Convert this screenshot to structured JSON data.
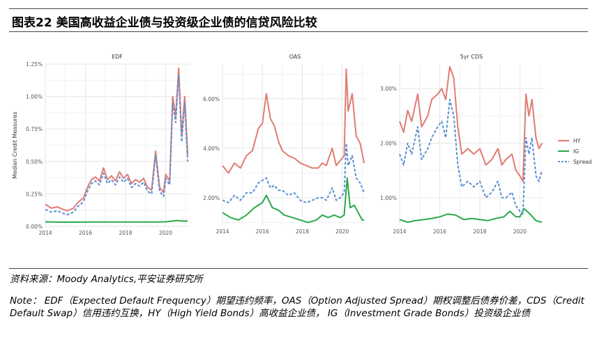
{
  "header": {
    "title": "图表22    美国高收益企业债与投资级企业债的信贷风险比较"
  },
  "footer": {
    "source": "资料来源：Moody Analytics,平安证券研究所",
    "note": "Note： EDF（Expected Default Frequency）期望违约频率，OAS（Option Adjusted Spread）期权调整后债券价差，CDS（Credit Default Swap）信用违约互换，HY（High Yield Bonds）高收益企业债， IG（Investment Grade Bonds）投资级企业债"
  },
  "colors": {
    "HY": "#e07b72",
    "IG": "#2aa84a",
    "Spread": "#5a8fd4"
  },
  "chart_data": [
    {
      "type": "line",
      "title": "EDF",
      "ylabel": "Median Credit Measures",
      "xlim": [
        2014,
        2021.2
      ],
      "ylim": [
        0,
        1.25
      ],
      "yticks": [
        0,
        0.25,
        0.5,
        0.75,
        1.0,
        1.25
      ],
      "ytick_labels": [
        "0.00%",
        "0.25%",
        "0.50%",
        "0.75%",
        "1.00%",
        "1.25%"
      ],
      "xticks": [
        2014,
        2016,
        2018,
        2020
      ],
      "grid": true,
      "series": [
        {
          "name": "HY",
          "style": "solid",
          "x": [
            2014.0,
            2014.3,
            2014.6,
            2014.9,
            2015.1,
            2015.4,
            2015.6,
            2015.9,
            2016.1,
            2016.3,
            2016.5,
            2016.7,
            2016.9,
            2017.1,
            2017.3,
            2017.5,
            2017.7,
            2017.9,
            2018.1,
            2018.3,
            2018.5,
            2018.7,
            2018.9,
            2019.1,
            2019.3,
            2019.5,
            2019.7,
            2019.9,
            2020.0,
            2020.2,
            2020.35,
            2020.5,
            2020.65,
            2020.8,
            2020.95,
            2021.1
          ],
          "y": [
            0.17,
            0.14,
            0.15,
            0.13,
            0.12,
            0.14,
            0.18,
            0.22,
            0.3,
            0.36,
            0.38,
            0.35,
            0.45,
            0.36,
            0.39,
            0.35,
            0.42,
            0.37,
            0.4,
            0.33,
            0.36,
            0.34,
            0.37,
            0.3,
            0.28,
            0.58,
            0.3,
            0.26,
            0.4,
            0.35,
            1.0,
            0.85,
            1.22,
            0.7,
            1.0,
            0.55
          ]
        },
        {
          "name": "IG",
          "style": "solid",
          "x": [
            2014.0,
            2014.5,
            2015.0,
            2015.5,
            2016.0,
            2016.5,
            2017.0,
            2017.5,
            2018.0,
            2018.5,
            2019.0,
            2019.5,
            2020.0,
            2020.3,
            2020.6,
            2020.9,
            2021.1
          ],
          "y": [
            0.035,
            0.033,
            0.032,
            0.032,
            0.033,
            0.034,
            0.034,
            0.034,
            0.034,
            0.033,
            0.034,
            0.033,
            0.035,
            0.04,
            0.045,
            0.04,
            0.042
          ]
        },
        {
          "name": "Spread",
          "style": "dashed",
          "x": [
            2014.0,
            2014.3,
            2014.6,
            2014.9,
            2015.1,
            2015.4,
            2015.6,
            2015.9,
            2016.1,
            2016.3,
            2016.5,
            2016.7,
            2016.9,
            2017.1,
            2017.3,
            2017.5,
            2017.7,
            2017.9,
            2018.1,
            2018.3,
            2018.5,
            2018.7,
            2018.9,
            2019.1,
            2019.3,
            2019.5,
            2019.7,
            2019.9,
            2020.0,
            2020.2,
            2020.35,
            2020.5,
            2020.65,
            2020.8,
            2020.95,
            2021.1
          ],
          "y": [
            0.13,
            0.11,
            0.12,
            0.1,
            0.09,
            0.11,
            0.15,
            0.19,
            0.27,
            0.33,
            0.35,
            0.32,
            0.41,
            0.33,
            0.36,
            0.32,
            0.38,
            0.34,
            0.37,
            0.3,
            0.33,
            0.31,
            0.34,
            0.27,
            0.25,
            0.55,
            0.27,
            0.23,
            0.37,
            0.32,
            0.95,
            0.8,
            1.17,
            0.65,
            0.95,
            0.5
          ]
        }
      ]
    },
    {
      "type": "line",
      "title": "OAS",
      "xlim": [
        2014,
        2021.2
      ],
      "ylim": [
        0.9,
        7.4
      ],
      "yticks": [
        2,
        4,
        6
      ],
      "ytick_labels": [
        "2.00%",
        "4.00%",
        "6.00%"
      ],
      "xticks": [
        2014,
        2016,
        2018,
        2020
      ],
      "grid": true,
      "series": [
        {
          "name": "HY",
          "style": "solid",
          "x": [
            2014.0,
            2014.3,
            2014.6,
            2014.9,
            2015.2,
            2015.5,
            2015.8,
            2016.0,
            2016.2,
            2016.4,
            2016.6,
            2016.8,
            2017.0,
            2017.3,
            2017.6,
            2017.9,
            2018.2,
            2018.5,
            2018.8,
            2019.0,
            2019.2,
            2019.5,
            2019.7,
            2019.9,
            2020.1,
            2020.2,
            2020.3,
            2020.5,
            2020.7,
            2020.9,
            2021.1
          ],
          "y": [
            3.3,
            3.0,
            3.4,
            3.2,
            3.7,
            3.9,
            4.8,
            5.0,
            6.2,
            5.2,
            4.9,
            4.3,
            3.9,
            3.7,
            3.6,
            3.4,
            3.3,
            3.2,
            3.2,
            3.4,
            3.3,
            4.0,
            3.3,
            3.5,
            3.7,
            7.2,
            5.5,
            6.2,
            4.5,
            4.2,
            3.4
          ]
        },
        {
          "name": "IG",
          "style": "solid",
          "x": [
            2014.0,
            2014.4,
            2014.8,
            2015.2,
            2015.6,
            2016.0,
            2016.2,
            2016.5,
            2016.8,
            2017.1,
            2017.5,
            2017.9,
            2018.3,
            2018.7,
            2019.0,
            2019.3,
            2019.6,
            2019.9,
            2020.1,
            2020.25,
            2020.4,
            2020.6,
            2020.8,
            2021.0,
            2021.1
          ],
          "y": [
            1.4,
            1.2,
            1.1,
            1.3,
            1.6,
            1.8,
            2.1,
            1.6,
            1.5,
            1.3,
            1.2,
            1.1,
            1.0,
            1.1,
            1.3,
            1.2,
            1.3,
            1.2,
            1.3,
            2.8,
            1.6,
            1.7,
            1.4,
            1.1,
            1.1
          ]
        },
        {
          "name": "Spread",
          "style": "dashed",
          "x": [
            2014.0,
            2014.3,
            2014.6,
            2014.9,
            2015.2,
            2015.5,
            2015.8,
            2016.0,
            2016.2,
            2016.4,
            2016.6,
            2016.8,
            2017.0,
            2017.3,
            2017.6,
            2017.9,
            2018.2,
            2018.5,
            2018.8,
            2019.0,
            2019.2,
            2019.5,
            2019.7,
            2019.9,
            2020.1,
            2020.2,
            2020.3,
            2020.5,
            2020.7,
            2020.9,
            2021.1
          ],
          "y": [
            1.9,
            1.8,
            2.1,
            1.9,
            2.2,
            2.2,
            2.6,
            2.7,
            2.8,
            2.4,
            2.5,
            2.3,
            2.3,
            2.1,
            2.2,
            1.9,
            1.8,
            1.9,
            2.0,
            2.0,
            1.9,
            2.4,
            1.9,
            2.0,
            2.2,
            4.2,
            3.3,
            3.7,
            2.8,
            2.6,
            2.2
          ]
        }
      ]
    },
    {
      "type": "line",
      "title": "5yr CDS",
      "xlim": [
        2014,
        2021.2
      ],
      "ylim": [
        0.5,
        3.45
      ],
      "yticks": [
        1,
        2,
        3
      ],
      "ytick_labels": [
        "1.00%",
        "2.00%",
        "3.00%"
      ],
      "xticks": [
        2014,
        2016,
        2018,
        2020
      ],
      "grid": true,
      "legend": "right",
      "series": [
        {
          "name": "HY",
          "style": "solid",
          "x": [
            2014.0,
            2014.2,
            2014.4,
            2014.6,
            2014.9,
            2015.1,
            2015.4,
            2015.6,
            2015.9,
            2016.1,
            2016.3,
            2016.5,
            2016.7,
            2016.9,
            2017.1,
            2017.4,
            2017.7,
            2018.0,
            2018.3,
            2018.6,
            2018.9,
            2019.1,
            2019.3,
            2019.6,
            2019.8,
            2020.0,
            2020.15,
            2020.3,
            2020.45,
            2020.6,
            2020.8,
            2020.95,
            2021.1
          ],
          "y": [
            2.4,
            2.2,
            2.6,
            2.4,
            2.9,
            2.3,
            2.5,
            2.8,
            2.9,
            3.0,
            2.8,
            3.4,
            3.2,
            2.3,
            1.8,
            1.9,
            1.8,
            1.9,
            1.6,
            1.7,
            1.9,
            1.6,
            1.7,
            1.8,
            1.5,
            1.4,
            1.3,
            2.9,
            2.5,
            2.8,
            2.1,
            1.9,
            2.0
          ]
        },
        {
          "name": "IG",
          "style": "solid",
          "x": [
            2014.0,
            2014.4,
            2014.8,
            2015.2,
            2015.6,
            2016.0,
            2016.4,
            2016.8,
            2017.2,
            2017.6,
            2018.0,
            2018.4,
            2018.8,
            2019.2,
            2019.5,
            2019.8,
            2020.0,
            2020.2,
            2020.5,
            2020.8,
            2021.1
          ],
          "y": [
            0.6,
            0.55,
            0.58,
            0.6,
            0.62,
            0.65,
            0.7,
            0.68,
            0.6,
            0.62,
            0.6,
            0.58,
            0.62,
            0.65,
            0.75,
            0.65,
            0.65,
            0.8,
            0.7,
            0.58,
            0.55
          ]
        },
        {
          "name": "Spread",
          "style": "dashed",
          "x": [
            2014.0,
            2014.2,
            2014.4,
            2014.6,
            2014.9,
            2015.1,
            2015.4,
            2015.6,
            2015.9,
            2016.1,
            2016.3,
            2016.5,
            2016.7,
            2016.9,
            2017.1,
            2017.4,
            2017.7,
            2018.0,
            2018.3,
            2018.6,
            2018.9,
            2019.1,
            2019.3,
            2019.6,
            2019.8,
            2020.0,
            2020.15,
            2020.3,
            2020.45,
            2020.6,
            2020.8,
            2020.95,
            2021.1
          ],
          "y": [
            1.8,
            1.6,
            2.0,
            1.8,
            2.3,
            1.7,
            1.9,
            2.1,
            2.3,
            2.4,
            2.1,
            2.8,
            2.5,
            1.6,
            1.2,
            1.3,
            1.2,
            1.3,
            1.0,
            1.1,
            1.3,
            1.0,
            1.0,
            1.1,
            0.85,
            0.75,
            0.7,
            2.1,
            1.8,
            2.1,
            1.4,
            1.3,
            1.5
          ]
        }
      ]
    }
  ]
}
